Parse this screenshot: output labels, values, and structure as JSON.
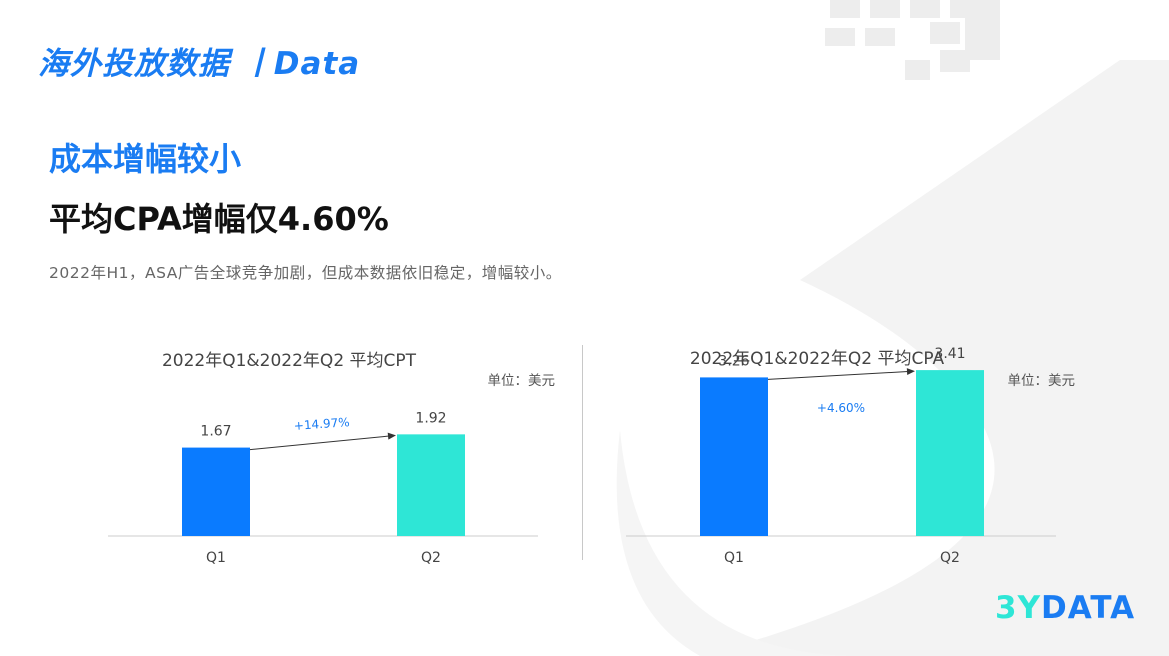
{
  "header": {
    "title": "海外投放数据 丨Data"
  },
  "section": {
    "title": "成本增幅较小",
    "headline": "平均CPA增幅仅4.60%",
    "description": "2022年H1，ASA广告全球竞争加剧，但成本数据依旧稳定，增幅较小。"
  },
  "logo": {
    "part_a": "3Y",
    "part_b": "DATA"
  },
  "colors": {
    "accent": "#1a7cf2",
    "q1_bar": "#0a7bff",
    "q2_bar": "#2ee6d6"
  },
  "chart_data": [
    {
      "type": "bar",
      "title": "2022年Q1&2022年Q2 平均CPT",
      "unit": "单位：美元",
      "categories": [
        "Q1",
        "Q2"
      ],
      "values": [
        1.67,
        1.92
      ],
      "value_labels": [
        "1.67",
        "1.92"
      ],
      "growth_label": "+14.97%",
      "ylim": [
        0,
        3.4
      ]
    },
    {
      "type": "bar",
      "title": "2022年Q1&2022年Q2 平均CPA",
      "unit": "单位：美元",
      "categories": [
        "Q1",
        "Q2"
      ],
      "values": [
        3.26,
        3.41
      ],
      "value_labels": [
        "3.26",
        "3.41"
      ],
      "growth_label": "+4.60%",
      "ylim": [
        0,
        3.7
      ]
    }
  ]
}
